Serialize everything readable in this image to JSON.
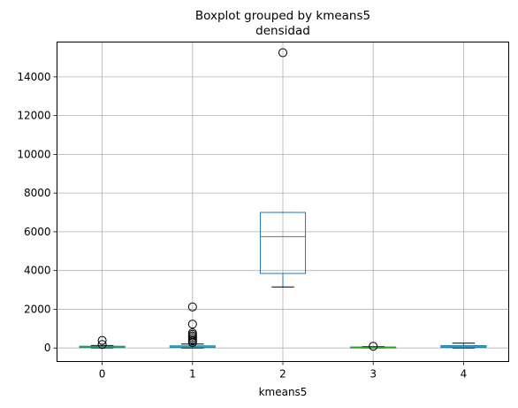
{
  "chart_data": {
    "type": "boxplot",
    "title": "Boxplot grouped by kmeans5",
    "subtitle": "densidad",
    "xlabel": "kmeans5",
    "ylabel": "",
    "categories": [
      "0",
      "1",
      "2",
      "3",
      "4"
    ],
    "ylim": [
      -700,
      15800
    ],
    "yticks": [
      0,
      2000,
      4000,
      6000,
      8000,
      10000,
      12000,
      14000
    ],
    "ytick_labels": [
      "0",
      "2000",
      "4000",
      "6000",
      "8000",
      "10000",
      "12000",
      "14000"
    ],
    "grid": true,
    "colors": {
      "box": "#1f77b4",
      "median": "#2ca02c",
      "whisker": "#000000",
      "flier": "#000000"
    },
    "boxes": [
      {
        "category": "0",
        "whisker_low": 5,
        "q1": 25,
        "median": 50,
        "q3": 90,
        "whisker_high": 130,
        "fliers": [
          180,
          390
        ]
      },
      {
        "category": "1",
        "whisker_low": 5,
        "q1": 30,
        "median": 60,
        "q3": 110,
        "whisker_high": 200,
        "fliers": [
          280,
          360,
          450,
          540,
          620,
          700,
          780,
          1230,
          2120
        ]
      },
      {
        "category": "2",
        "whisker_low": 3150,
        "q1": 3850,
        "median": 5750,
        "q3": 7000,
        "whisker_high": 7000,
        "fliers": [
          15250
        ]
      },
      {
        "category": "3",
        "whisker_low": 5,
        "q1": 15,
        "median": 30,
        "q3": 50,
        "whisker_high": 70,
        "fliers": [
          90
        ]
      },
      {
        "category": "4",
        "whisker_low": 5,
        "q1": 30,
        "median": 70,
        "q3": 120,
        "whisker_high": 250,
        "fliers": []
      }
    ]
  }
}
